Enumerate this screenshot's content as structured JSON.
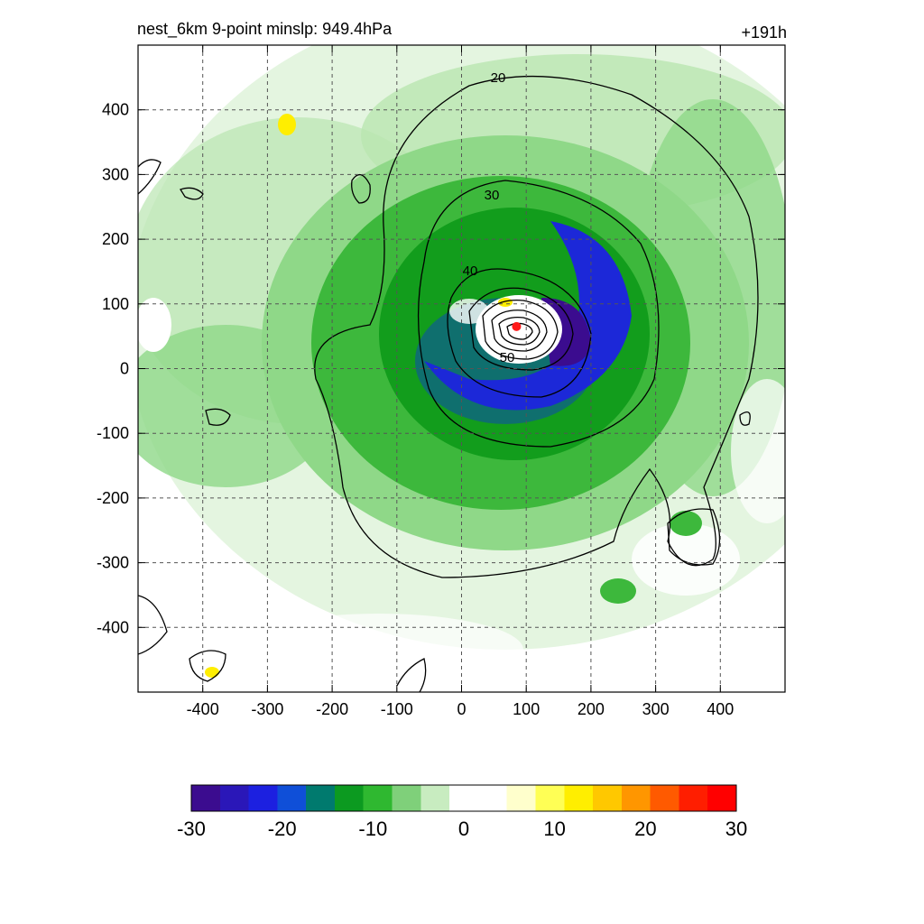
{
  "header": {
    "title_left": "nest_6km  9-point minslp: 949.4hPa",
    "title_right": "+191h"
  },
  "map": {
    "x_ticks": [
      -400,
      -300,
      -200,
      -100,
      0,
      100,
      200,
      300,
      400
    ],
    "y_ticks": [
      400,
      300,
      200,
      100,
      0,
      -100,
      -200,
      -300,
      -400
    ],
    "xlim": [
      -500,
      500
    ],
    "ylim": [
      -500,
      500
    ],
    "grid": true,
    "center_marker": {
      "x": 85,
      "y": 65,
      "color": "#ff1a1a"
    },
    "contour_levels": [
      "20",
      "30",
      "40",
      "50"
    ]
  },
  "colorbar": {
    "tick_labels": [
      "-30",
      "-20",
      "-10",
      "0",
      "10",
      "20",
      "30"
    ],
    "range": [
      -30,
      30
    ],
    "colors": [
      "#3b0c8f",
      "#2a17b8",
      "#1c20e0",
      "#0f4fd8",
      "#007a6e",
      "#0c9a20",
      "#2fb830",
      "#7fd07a",
      "#c8ecc0",
      "#ffffff",
      "#ffffff",
      "#ffffcc",
      "#ffff55",
      "#ffee00",
      "#ffc800",
      "#ff9600",
      "#ff5a00",
      "#ff1e00",
      "#ff0000"
    ]
  }
}
